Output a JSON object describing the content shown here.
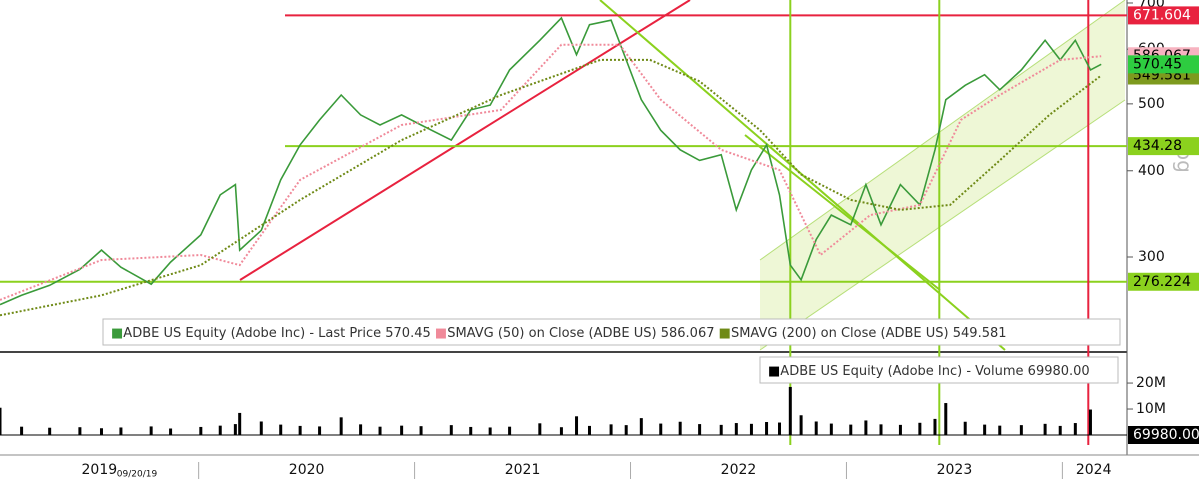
{
  "chart_data": [
    {
      "type": "line",
      "log": true,
      "y_label": "Log",
      "date_label": "09/20/19",
      "xlim": [
        2019.08,
        2024.29
      ],
      "xticks": [
        2019,
        2020,
        2021,
        2022,
        2023,
        2024
      ],
      "ylim": [
        220,
        707
      ],
      "yticks": [
        300,
        400,
        500,
        600,
        700
      ],
      "x": [
        2019.08,
        2019.18,
        2019.31,
        2019.45,
        2019.55,
        2019.64,
        2019.78,
        2019.87,
        2020.01,
        2020.1,
        2020.17,
        2020.19,
        2020.29,
        2020.38,
        2020.47,
        2020.56,
        2020.66,
        2020.75,
        2020.84,
        2020.94,
        2021.03,
        2021.17,
        2021.26,
        2021.35,
        2021.44,
        2021.58,
        2021.68,
        2021.75,
        2021.81,
        2021.91,
        2021.98,
        2022.05,
        2022.14,
        2022.23,
        2022.32,
        2022.42,
        2022.49,
        2022.56,
        2022.63,
        2022.69,
        2022.74,
        2022.79,
        2022.86,
        2022.93,
        2023.02,
        2023.09,
        2023.16,
        2023.25,
        2023.34,
        2023.41,
        2023.46,
        2023.55,
        2023.64,
        2023.71,
        2023.81,
        2023.92,
        2023.99,
        2024.06,
        2024.13,
        2024.18
      ],
      "series": [
        {
          "name": "ADBE US Equity (Adobe Inc) - Last Price",
          "color": "#3a9a3a",
          "box_color": "#2ecc40",
          "values": [
            256,
            264,
            273,
            288,
            307,
            290,
            274,
            295,
            323,
            369,
            382,
            307,
            328,
            388,
            436,
            474,
            515,
            482,
            466,
            482,
            466,
            443,
            490,
            498,
            560,
            618,
            666,
            589,
            651,
            661,
            579,
            507,
            458,
            429,
            414,
            422,
            351,
            401,
            436,
            369,
            292,
            278,
            318,
            345,
            334,
            382,
            334,
            382,
            357,
            429,
            507,
            532,
            551,
            524,
            560,
            618,
            579,
            618,
            560,
            570.45
          ]
        },
        {
          "name": "SMAVG (50)  on Close (ADBE US)",
          "color": "#f08a9a",
          "box_color": "#f7b3c0",
          "x": [
            2019.08,
            2019.55,
            2020.01,
            2020.19,
            2020.47,
            2020.94,
            2021.4,
            2021.68,
            2021.95,
            2022.14,
            2022.42,
            2022.69,
            2022.88,
            2023.11,
            2023.34,
            2023.53,
            2023.71,
            2023.99,
            2024.18
          ],
          "values": [
            260,
            297,
            302,
            292,
            388,
            466,
            490,
            609,
            609,
            507,
            429,
            401,
            302,
            345,
            357,
            474,
            515,
            579,
            586.067
          ]
        },
        {
          "name": "SMAVG (200)  on Close (ADBE US)",
          "color": "#6f8a16",
          "box_color": "#7d9a1e",
          "x": [
            2019.08,
            2019.55,
            2020.01,
            2020.47,
            2020.94,
            2021.4,
            2021.86,
            2022.09,
            2022.32,
            2022.6,
            2022.79,
            2023.02,
            2023.25,
            2023.48,
            2023.71,
            2023.94,
            2024.18
          ],
          "values": [
            247,
            264,
            292,
            363,
            443,
            515,
            579,
            579,
            539,
            458,
            395,
            363,
            351,
            357,
            414,
            482,
            549.581
          ]
        }
      ],
      "hlines": [
        {
          "value": 671.604,
          "color": "#e8223f",
          "text_color": "#ffffff"
        },
        {
          "value": 434.28,
          "color": "#8bd11e",
          "text_color": "#000000"
        },
        {
          "value": 276.224,
          "color": "#8bd11e",
          "text_color": "#000000"
        }
      ],
      "vlines": [
        {
          "x": 2022.74,
          "color": "#8bd11e"
        },
        {
          "x": 2023.43,
          "color": "#8bd11e"
        },
        {
          "x": 2024.12,
          "color": "#e8223f"
        }
      ]
    },
    {
      "type": "bar",
      "ylim": [
        0,
        30800000
      ],
      "yticks": [
        {
          "value": 10000000,
          "label": "10M"
        },
        {
          "value": 20000000,
          "label": "20M"
        }
      ],
      "x": [
        2019.08,
        2019.18,
        2019.31,
        2019.45,
        2019.55,
        2019.64,
        2019.78,
        2019.87,
        2020.01,
        2020.1,
        2020.17,
        2020.19,
        2020.29,
        2020.38,
        2020.47,
        2020.56,
        2020.66,
        2020.75,
        2020.84,
        2020.94,
        2021.03,
        2021.17,
        2021.26,
        2021.35,
        2021.44,
        2021.58,
        2021.68,
        2021.75,
        2021.81,
        2021.91,
        2021.98,
        2022.05,
        2022.14,
        2022.23,
        2022.32,
        2022.42,
        2022.49,
        2022.56,
        2022.63,
        2022.69,
        2022.74,
        2022.79,
        2022.86,
        2022.93,
        2023.02,
        2023.09,
        2023.16,
        2023.25,
        2023.34,
        2023.41,
        2023.46,
        2023.55,
        2023.64,
        2023.71,
        2023.81,
        2023.92,
        2023.99,
        2024.06,
        2024.13,
        2024.18
      ],
      "series": [
        {
          "name": "ADBE US Equity (Adobe Inc) - Volume",
          "color": "#000000",
          "values": [
            10500000,
            3200000,
            2800000,
            3000000,
            2600000,
            2900000,
            3300000,
            2500000,
            3100000,
            3600000,
            4200000,
            8500000,
            5200000,
            4000000,
            3500000,
            3300000,
            6800000,
            4100000,
            3200000,
            3600000,
            3400000,
            3800000,
            3100000,
            2900000,
            3200000,
            4500000,
            3000000,
            7200000,
            3500000,
            4100000,
            3800000,
            6500000,
            4400000,
            5100000,
            4200000,
            3900000,
            4600000,
            4300000,
            5000000,
            4800000,
            18500000,
            7600000,
            5200000,
            4400000,
            4000000,
            5600000,
            4100000,
            3900000,
            4700000,
            6200000,
            12300000,
            5100000,
            4000000,
            3600000,
            3800000,
            4300000,
            3500000,
            4600000,
            9800000,
            69980
          ],
          "value_labels": [
            null,
            null,
            null,
            null,
            null,
            null,
            null,
            null,
            null,
            null,
            null,
            null,
            null,
            null,
            null,
            null,
            null,
            null,
            null,
            null,
            null,
            null,
            null,
            null,
            null,
            null,
            null,
            null,
            null,
            null,
            null,
            null,
            null,
            null,
            null,
            null,
            null,
            null,
            null,
            null,
            null,
            null,
            null,
            null,
            null,
            null,
            null,
            null,
            null,
            null,
            null,
            null,
            null,
            null,
            null,
            null,
            null,
            null,
            null,
            "69980.00"
          ]
        }
      ]
    }
  ]
}
